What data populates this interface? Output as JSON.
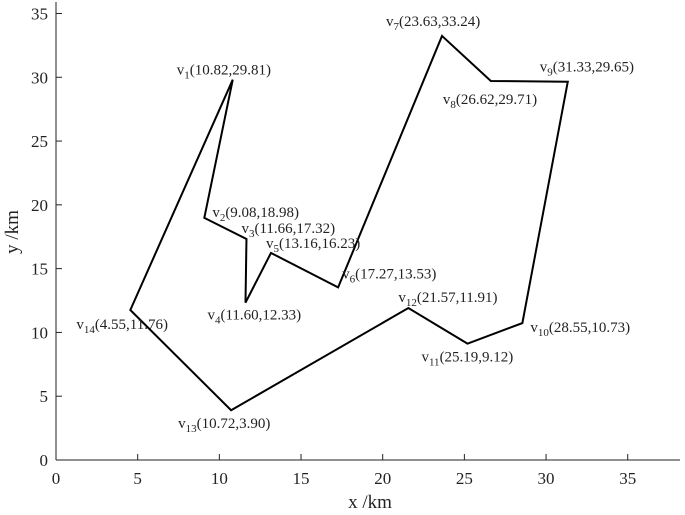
{
  "chart_data": {
    "type": "polygon",
    "x_label": "x /km",
    "y_label": "y /km",
    "x": [
      10.82,
      9.08,
      11.66,
      11.6,
      13.16,
      17.27,
      23.63,
      26.62,
      31.33,
      28.55,
      25.19,
      21.57,
      10.72,
      4.55
    ],
    "values": [
      29.81,
      18.98,
      17.32,
      12.33,
      16.23,
      13.53,
      33.24,
      29.71,
      29.65,
      10.73,
      9.12,
      11.91,
      3.9,
      11.76
    ],
    "labels": [
      {
        "symbol": "v",
        "subscript": "1",
        "text": "(10.82,29.81)"
      },
      {
        "symbol": "v",
        "subscript": "2",
        "text": "(9.08,18.98)"
      },
      {
        "symbol": "v",
        "subscript": "3",
        "text": "(11.66,17.32)"
      },
      {
        "symbol": "v",
        "subscript": "4",
        "text": "(11.60,12.33)"
      },
      {
        "symbol": "v",
        "subscript": "5",
        "text": "(13.16,16.23)"
      },
      {
        "symbol": "v",
        "subscript": "6",
        "text": "(17.27,13.53)"
      },
      {
        "symbol": "v",
        "subscript": "7",
        "text": "(23.63,33.24)"
      },
      {
        "symbol": "v",
        "subscript": "8",
        "text": "(26.62,29.71)"
      },
      {
        "symbol": "v",
        "subscript": "9",
        "text": "(31.33,29.65)"
      },
      {
        "symbol": "v",
        "subscript": "10",
        "text": "(28.55,10.73)"
      },
      {
        "symbol": "v",
        "subscript": "11",
        "text": "(25.19,9.12)"
      },
      {
        "symbol": "v",
        "subscript": "12",
        "text": "(21.57,11.91)"
      },
      {
        "symbol": "v",
        "subscript": "13",
        "text": "(10.72,3.90)"
      },
      {
        "symbol": "v",
        "subscript": "14",
        "text": "(4.55,11.76)"
      }
    ],
    "color": "#000000",
    "xlim": [
      0,
      38.2
    ],
    "ylim": [
      0,
      35.9
    ],
    "xticks": [
      0,
      5,
      10,
      15,
      20,
      25,
      30,
      35
    ],
    "yticks": [
      0,
      5,
      10,
      15,
      20,
      25,
      30,
      35
    ]
  }
}
